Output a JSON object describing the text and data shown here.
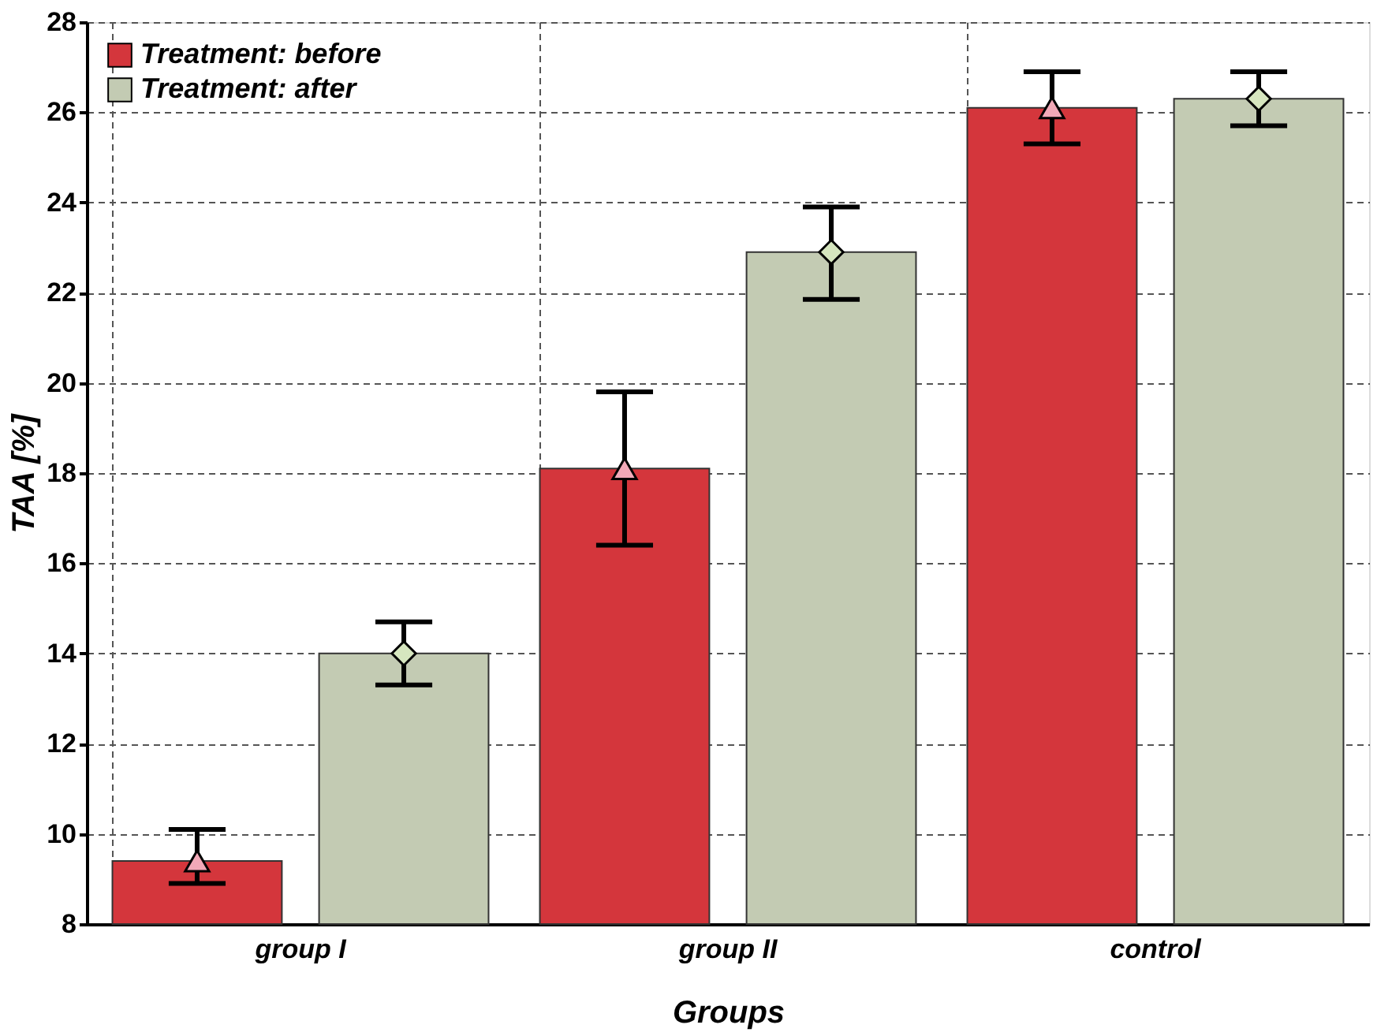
{
  "chart_data": {
    "type": "bar",
    "xlabel": "Groups",
    "ylabel": "TAA [%]",
    "categories": [
      "group I",
      "group II",
      "control"
    ],
    "series": [
      {
        "name": "Treatment: before",
        "color": "#d4363c",
        "values": [
          9.4,
          18.1,
          26.1
        ],
        "errors": [
          [
            8.9,
            10.1
          ],
          [
            16.4,
            19.8
          ],
          [
            25.3,
            26.9
          ]
        ]
      },
      {
        "name": "Treatment: after",
        "color": "#c3cbb3",
        "values": [
          14.0,
          22.9,
          26.3
        ],
        "errors": [
          [
            13.3,
            14.7
          ],
          [
            21.85,
            23.9
          ],
          [
            25.7,
            26.9
          ]
        ]
      },
      {
        "type": "scatter",
        "color": "#f2a9b8",
        "x": [
          "group I",
          "group II",
          "control"
        ],
        "values": [
          9.4,
          18.1,
          26.1
        ],
        "marker": "triangle"
      },
      {
        "type": "scatter",
        "color": "#d6e6bf",
        "x": [
          "group I",
          "group II",
          "control"
        ],
        "values": [
          14.0,
          22.9,
          26.3
        ],
        "marker": "diamond"
      }
    ],
    "ylim": [
      8,
      28
    ],
    "yticks": [
      8,
      10,
      12,
      14,
      16,
      18,
      20,
      22,
      24,
      26,
      28
    ],
    "grid": true,
    "legend": "top left"
  }
}
